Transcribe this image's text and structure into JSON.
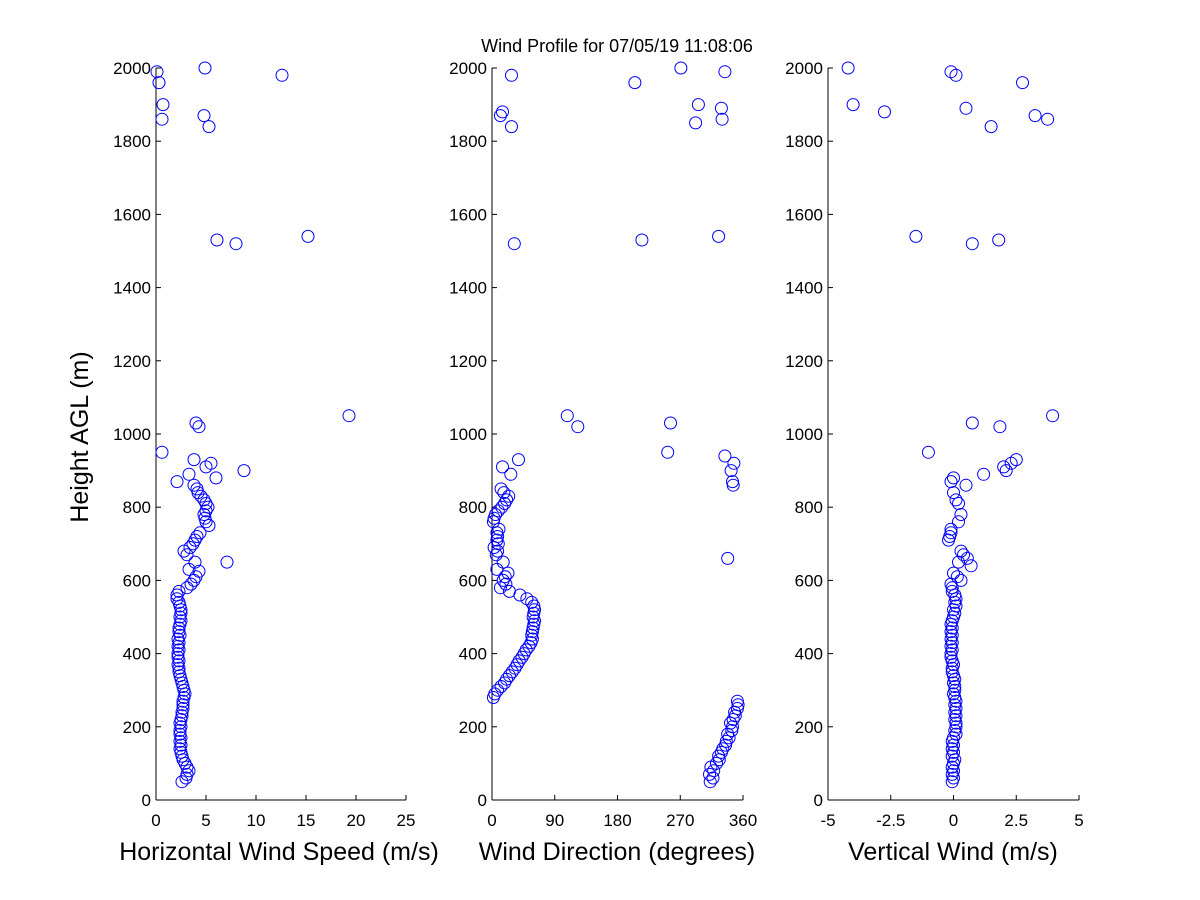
{
  "title": "Wind Profile for  07/05/19 11:08:06",
  "ylabel": "Height AGL (m)",
  "marker_color": "#0000ff",
  "chart_data": [
    {
      "type": "scatter",
      "xlabel": "Horizontal Wind Speed (m/s)",
      "xlim": [
        0,
        25
      ],
      "ylim": [
        0,
        2000
      ],
      "xticks": [
        0,
        5,
        10,
        15,
        20,
        25
      ],
      "xtick_labels": [
        "0",
        "5",
        "10",
        "15",
        "20",
        "25"
      ],
      "yticks": [
        0,
        200,
        400,
        600,
        800,
        1000,
        1200,
        1400,
        1600,
        1800,
        2000
      ],
      "points": [
        [
          2.6,
          50
        ],
        [
          3.0,
          60
        ],
        [
          3.1,
          70
        ],
        [
          3.3,
          80
        ],
        [
          3.1,
          90
        ],
        [
          2.9,
          100
        ],
        [
          2.7,
          110
        ],
        [
          2.6,
          120
        ],
        [
          2.5,
          130
        ],
        [
          2.4,
          140
        ],
        [
          2.5,
          150
        ],
        [
          2.4,
          160
        ],
        [
          2.5,
          170
        ],
        [
          2.4,
          180
        ],
        [
          2.4,
          190
        ],
        [
          2.5,
          200
        ],
        [
          2.4,
          210
        ],
        [
          2.5,
          220
        ],
        [
          2.6,
          230
        ],
        [
          2.6,
          240
        ],
        [
          2.7,
          250
        ],
        [
          2.7,
          260
        ],
        [
          2.7,
          270
        ],
        [
          2.8,
          280
        ],
        [
          2.9,
          290
        ],
        [
          2.8,
          300
        ],
        [
          2.7,
          310
        ],
        [
          2.6,
          320
        ],
        [
          2.5,
          330
        ],
        [
          2.4,
          340
        ],
        [
          2.3,
          350
        ],
        [
          2.3,
          360
        ],
        [
          2.2,
          370
        ],
        [
          2.3,
          380
        ],
        [
          2.2,
          390
        ],
        [
          2.2,
          400
        ],
        [
          2.3,
          410
        ],
        [
          2.2,
          420
        ],
        [
          2.3,
          430
        ],
        [
          2.2,
          440
        ],
        [
          2.4,
          450
        ],
        [
          2.3,
          460
        ],
        [
          2.3,
          470
        ],
        [
          2.4,
          480
        ],
        [
          2.5,
          490
        ],
        [
          2.4,
          500
        ],
        [
          2.5,
          510
        ],
        [
          2.5,
          520
        ],
        [
          2.4,
          530
        ],
        [
          2.3,
          540
        ],
        [
          2.1,
          550
        ],
        [
          2.1,
          560
        ],
        [
          2.3,
          570
        ],
        [
          3.1,
          580
        ],
        [
          3.5,
          590
        ],
        [
          3.8,
          600
        ],
        [
          4.0,
          610
        ],
        [
          4.3,
          625
        ],
        [
          3.3,
          630
        ],
        [
          3.9,
          650
        ],
        [
          7.1,
          650
        ],
        [
          3.1,
          670
        ],
        [
          2.8,
          680
        ],
        [
          3.4,
          690
        ],
        [
          3.7,
          700
        ],
        [
          3.9,
          710
        ],
        [
          4.1,
          720
        ],
        [
          4.4,
          730
        ],
        [
          5.3,
          750
        ],
        [
          5.0,
          760
        ],
        [
          4.9,
          770
        ],
        [
          4.8,
          780
        ],
        [
          5.0,
          790
        ],
        [
          5.2,
          800
        ],
        [
          5.0,
          810
        ],
        [
          4.8,
          820
        ],
        [
          4.5,
          830
        ],
        [
          4.2,
          840
        ],
        [
          4.1,
          850
        ],
        [
          3.8,
          860
        ],
        [
          2.1,
          870
        ],
        [
          6.0,
          880
        ],
        [
          3.3,
          890
        ],
        [
          8.8,
          900
        ],
        [
          5.0,
          910
        ],
        [
          5.5,
          920
        ],
        [
          3.8,
          930
        ],
        [
          0.6,
          950
        ],
        [
          4.3,
          1020
        ],
        [
          4.0,
          1030
        ],
        [
          19.3,
          1050
        ],
        [
          8.0,
          1520
        ],
        [
          6.1,
          1530
        ],
        [
          15.2,
          1540
        ],
        [
          5.3,
          1840
        ],
        [
          0.6,
          1860
        ],
        [
          4.8,
          1870
        ],
        [
          0.7,
          1900
        ],
        [
          0.3,
          1960
        ],
        [
          12.6,
          1980
        ],
        [
          0.1,
          1990
        ],
        [
          4.9,
          2000
        ]
      ]
    },
    {
      "type": "scatter",
      "xlabel": "Wind Direction (degrees)",
      "xlim": [
        0,
        360
      ],
      "ylim": [
        0,
        2000
      ],
      "xticks": [
        0,
        90,
        180,
        270,
        360
      ],
      "xtick_labels": [
        "0",
        "90",
        "180",
        "270",
        "360"
      ],
      "yticks": [
        0,
        200,
        400,
        600,
        800,
        1000,
        1200,
        1400,
        1600,
        1800,
        2000
      ],
      "points": [
        [
          313,
          50
        ],
        [
          317,
          60
        ],
        [
          312,
          70
        ],
        [
          318,
          80
        ],
        [
          314,
          90
        ],
        [
          322,
          100
        ],
        [
          326,
          110
        ],
        [
          325,
          120
        ],
        [
          329,
          130
        ],
        [
          331,
          140
        ],
        [
          335,
          150
        ],
        [
          336,
          160
        ],
        [
          340,
          170
        ],
        [
          338,
          180
        ],
        [
          344,
          190
        ],
        [
          345,
          200
        ],
        [
          342,
          210
        ],
        [
          346,
          220
        ],
        [
          349,
          230
        ],
        [
          348,
          240
        ],
        [
          352,
          250
        ],
        [
          353,
          260
        ],
        [
          352,
          270
        ],
        [
          2,
          280
        ],
        [
          4,
          290
        ],
        [
          8,
          300
        ],
        [
          13,
          310
        ],
        [
          18,
          320
        ],
        [
          21,
          330
        ],
        [
          25,
          340
        ],
        [
          29,
          350
        ],
        [
          33,
          360
        ],
        [
          36,
          370
        ],
        [
          39,
          380
        ],
        [
          43,
          390
        ],
        [
          46,
          400
        ],
        [
          49,
          410
        ],
        [
          53,
          420
        ],
        [
          56,
          430
        ],
        [
          58,
          440
        ],
        [
          57,
          450
        ],
        [
          58,
          460
        ],
        [
          59,
          470
        ],
        [
          60,
          480
        ],
        [
          61,
          490
        ],
        [
          59,
          500
        ],
        [
          60,
          510
        ],
        [
          61,
          520
        ],
        [
          60,
          530
        ],
        [
          57,
          540
        ],
        [
          50,
          550
        ],
        [
          40,
          560
        ],
        [
          25,
          570
        ],
        [
          12,
          580
        ],
        [
          20,
          590
        ],
        [
          16,
          600
        ],
        [
          19,
          610
        ],
        [
          23,
          620
        ],
        [
          7,
          630
        ],
        [
          16,
          650
        ],
        [
          338,
          660
        ],
        [
          6,
          670
        ],
        [
          8,
          680
        ],
        [
          3,
          690
        ],
        [
          9,
          700
        ],
        [
          7,
          710
        ],
        [
          8,
          720
        ],
        [
          7,
          730
        ],
        [
          10,
          740
        ],
        [
          2,
          760
        ],
        [
          3,
          770
        ],
        [
          5,
          780
        ],
        [
          9,
          790
        ],
        [
          14,
          800
        ],
        [
          18,
          810
        ],
        [
          21,
          820
        ],
        [
          24,
          830
        ],
        [
          17,
          840
        ],
        [
          13,
          850
        ],
        [
          346,
          860
        ],
        [
          345,
          870
        ],
        [
          27,
          890
        ],
        [
          343,
          900
        ],
        [
          15,
          910
        ],
        [
          347,
          920
        ],
        [
          38,
          930
        ],
        [
          334,
          940
        ],
        [
          252,
          950
        ],
        [
          123,
          1020
        ],
        [
          256,
          1030
        ],
        [
          108,
          1050
        ],
        [
          32,
          1520
        ],
        [
          215,
          1530
        ],
        [
          325,
          1540
        ],
        [
          28,
          1840
        ],
        [
          330,
          1860
        ],
        [
          12,
          1870
        ],
        [
          15,
          1880
        ],
        [
          296,
          1900
        ],
        [
          329,
          1890
        ],
        [
          292,
          1850
        ],
        [
          205,
          1960
        ],
        [
          28,
          1980
        ],
        [
          334,
          1990
        ],
        [
          271,
          2000
        ]
      ]
    },
    {
      "type": "scatter",
      "xlabel": "Vertical Wind (m/s)",
      "xlim": [
        -5,
        5
      ],
      "ylim": [
        0,
        2000
      ],
      "xticks": [
        -5,
        -2.5,
        0,
        2.5,
        5
      ],
      "xtick_labels": [
        "-5",
        "-2.5",
        "0",
        "2.5",
        "5"
      ],
      "yticks": [
        0,
        200,
        400,
        600,
        800,
        1000,
        1200,
        1400,
        1600,
        1800,
        2000
      ],
      "points": [
        [
          -0.05,
          50
        ],
        [
          0.0,
          60
        ],
        [
          -0.05,
          70
        ],
        [
          0.0,
          80
        ],
        [
          -0.05,
          90
        ],
        [
          0.0,
          100
        ],
        [
          0.05,
          110
        ],
        [
          -0.05,
          120
        ],
        [
          0.0,
          130
        ],
        [
          -0.05,
          140
        ],
        [
          0.0,
          150
        ],
        [
          -0.05,
          160
        ],
        [
          0.0,
          170
        ],
        [
          0.1,
          180
        ],
        [
          0.05,
          190
        ],
        [
          0.1,
          200
        ],
        [
          0.1,
          210
        ],
        [
          0.05,
          220
        ],
        [
          0.1,
          230
        ],
        [
          0.05,
          240
        ],
        [
          0.1,
          250
        ],
        [
          0.05,
          260
        ],
        [
          0.1,
          270
        ],
        [
          0.05,
          280
        ],
        [
          0.0,
          290
        ],
        [
          0.05,
          300
        ],
        [
          0.05,
          310
        ],
        [
          0.0,
          320
        ],
        [
          0.05,
          330
        ],
        [
          0.0,
          340
        ],
        [
          -0.05,
          350
        ],
        [
          -0.05,
          360
        ],
        [
          0.0,
          370
        ],
        [
          -0.05,
          380
        ],
        [
          -0.1,
          390
        ],
        [
          -0.1,
          400
        ],
        [
          -0.05,
          410
        ],
        [
          -0.1,
          420
        ],
        [
          -0.05,
          430
        ],
        [
          -0.1,
          440
        ],
        [
          -0.05,
          450
        ],
        [
          -0.1,
          460
        ],
        [
          -0.05,
          470
        ],
        [
          -0.1,
          480
        ],
        [
          -0.05,
          490
        ],
        [
          0.0,
          500
        ],
        [
          0.05,
          510
        ],
        [
          0.0,
          520
        ],
        [
          0.1,
          530
        ],
        [
          0.05,
          540
        ],
        [
          0.1,
          550
        ],
        [
          0.05,
          560
        ],
        [
          -0.05,
          570
        ],
        [
          -0.05,
          580
        ],
        [
          -0.1,
          590
        ],
        [
          0.3,
          600
        ],
        [
          0.15,
          610
        ],
        [
          0.0,
          620
        ],
        [
          0.7,
          640
        ],
        [
          0.2,
          650
        ],
        [
          0.55,
          660
        ],
        [
          0.4,
          670
        ],
        [
          0.3,
          680
        ],
        [
          -0.2,
          710
        ],
        [
          -0.15,
          720
        ],
        [
          -0.1,
          730
        ],
        [
          -0.1,
          740
        ],
        [
          0.2,
          760
        ],
        [
          0.3,
          780
        ],
        [
          0.2,
          810
        ],
        [
          0.1,
          820
        ],
        [
          0.0,
          840
        ],
        [
          0.5,
          860
        ],
        [
          -0.1,
          870
        ],
        [
          0.0,
          880
        ],
        [
          1.2,
          890
        ],
        [
          2.1,
          900
        ],
        [
          2.0,
          910
        ],
        [
          2.3,
          920
        ],
        [
          2.5,
          930
        ],
        [
          -1.0,
          950
        ],
        [
          1.85,
          1020
        ],
        [
          0.75,
          1030
        ],
        [
          3.95,
          1050
        ],
        [
          -1.5,
          1540
        ],
        [
          0.75,
          1520
        ],
        [
          1.8,
          1530
        ],
        [
          1.5,
          1840
        ],
        [
          3.75,
          1860
        ],
        [
          3.25,
          1870
        ],
        [
          -2.75,
          1880
        ],
        [
          0.5,
          1890
        ],
        [
          -4.0,
          1900
        ],
        [
          2.75,
          1960
        ],
        [
          0.1,
          1980
        ],
        [
          -0.1,
          1990
        ],
        [
          -4.2,
          2000
        ]
      ]
    }
  ]
}
